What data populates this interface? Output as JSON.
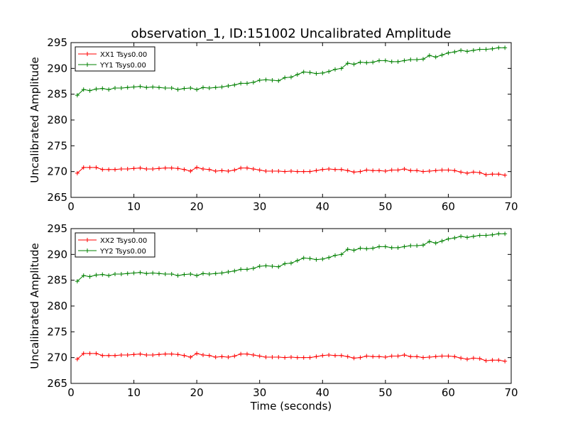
{
  "figure": {
    "title": "observation_1, ID:151002 Uncalibrated Amplitude",
    "xlabel": "Time (seconds)"
  },
  "chart_data": [
    {
      "type": "line",
      "title": "observation_1, ID:151002 Uncalibrated Amplitude",
      "xlabel": "",
      "ylabel": "Uncalibrated Amplitude",
      "xlim": [
        0,
        70
      ],
      "ylim": [
        265,
        295
      ],
      "xticks": [
        0,
        10,
        20,
        30,
        40,
        50,
        60,
        70
      ],
      "yticks": [
        265,
        270,
        275,
        280,
        285,
        290,
        295
      ],
      "grid": false,
      "legend_position": "top-left",
      "x": [
        1,
        2,
        3,
        4,
        5,
        6,
        7,
        8,
        9,
        10,
        11,
        12,
        13,
        14,
        15,
        16,
        17,
        18,
        19,
        20,
        21,
        22,
        23,
        24,
        25,
        26,
        27,
        28,
        29,
        30,
        31,
        32,
        33,
        34,
        35,
        36,
        37,
        38,
        39,
        40,
        41,
        42,
        43,
        44,
        45,
        46,
        47,
        48,
        49,
        50,
        51,
        52,
        53,
        54,
        55,
        56,
        57,
        58,
        59,
        60,
        61,
        62,
        63,
        64,
        65,
        66,
        67,
        68,
        69
      ],
      "series": [
        {
          "name": "XX1 Tsys0.00",
          "color": "#ff0000",
          "values": [
            269.7,
            270.8,
            270.8,
            270.8,
            270.4,
            270.4,
            270.4,
            270.5,
            270.5,
            270.6,
            270.7,
            270.5,
            270.5,
            270.6,
            270.7,
            270.7,
            270.6,
            270.4,
            270.1,
            270.8,
            270.5,
            270.4,
            270.1,
            270.2,
            270.1,
            270.3,
            270.7,
            270.7,
            270.5,
            270.3,
            270.1,
            270.1,
            270.1,
            270.0,
            270.1,
            270.0,
            270.0,
            270.0,
            270.2,
            270.4,
            270.5,
            270.4,
            270.4,
            270.2,
            269.9,
            270.0,
            270.3,
            270.2,
            270.2,
            270.1,
            270.3,
            270.3,
            270.5,
            270.2,
            270.2,
            270.0,
            270.1,
            270.2,
            270.3,
            270.3,
            270.2,
            269.9,
            269.7,
            269.9,
            269.8,
            269.4,
            269.5,
            269.5,
            269.3
          ]
        },
        {
          "name": "YY1 Tsys0.00",
          "color": "#008000",
          "values": [
            284.8,
            285.9,
            285.7,
            286.0,
            286.1,
            285.9,
            286.2,
            286.2,
            286.3,
            286.4,
            286.5,
            286.3,
            286.4,
            286.3,
            286.2,
            286.2,
            285.9,
            286.1,
            286.2,
            285.9,
            286.3,
            286.2,
            286.3,
            286.4,
            286.6,
            286.8,
            287.1,
            287.1,
            287.3,
            287.7,
            287.8,
            287.7,
            287.6,
            288.2,
            288.3,
            288.8,
            289.3,
            289.2,
            289.0,
            289.1,
            289.4,
            289.8,
            290.0,
            291.0,
            290.8,
            291.2,
            291.1,
            291.2,
            291.5,
            291.5,
            291.3,
            291.3,
            291.5,
            291.7,
            291.7,
            291.8,
            292.5,
            292.2,
            292.6,
            293.0,
            293.2,
            293.5,
            293.3,
            293.5,
            293.7,
            293.7,
            293.8,
            294.0,
            294.0
          ]
        }
      ]
    },
    {
      "type": "line",
      "title": "",
      "xlabel": "Time (seconds)",
      "ylabel": "Uncalibrated Amplitude",
      "xlim": [
        0,
        70
      ],
      "ylim": [
        265,
        295
      ],
      "xticks": [
        0,
        10,
        20,
        30,
        40,
        50,
        60,
        70
      ],
      "yticks": [
        265,
        270,
        275,
        280,
        285,
        290,
        295
      ],
      "grid": false,
      "legend_position": "top-left",
      "x": [
        1,
        2,
        3,
        4,
        5,
        6,
        7,
        8,
        9,
        10,
        11,
        12,
        13,
        14,
        15,
        16,
        17,
        18,
        19,
        20,
        21,
        22,
        23,
        24,
        25,
        26,
        27,
        28,
        29,
        30,
        31,
        32,
        33,
        34,
        35,
        36,
        37,
        38,
        39,
        40,
        41,
        42,
        43,
        44,
        45,
        46,
        47,
        48,
        49,
        50,
        51,
        52,
        53,
        54,
        55,
        56,
        57,
        58,
        59,
        60,
        61,
        62,
        63,
        64,
        65,
        66,
        67,
        68,
        69
      ],
      "series": [
        {
          "name": "XX2 Tsys0.00",
          "color": "#ff0000",
          "values": [
            269.7,
            270.8,
            270.8,
            270.8,
            270.4,
            270.4,
            270.4,
            270.5,
            270.5,
            270.6,
            270.7,
            270.5,
            270.5,
            270.6,
            270.7,
            270.7,
            270.6,
            270.4,
            270.1,
            270.8,
            270.5,
            270.4,
            270.1,
            270.2,
            270.1,
            270.3,
            270.7,
            270.7,
            270.5,
            270.3,
            270.1,
            270.1,
            270.1,
            270.0,
            270.1,
            270.0,
            270.0,
            270.0,
            270.2,
            270.4,
            270.5,
            270.4,
            270.4,
            270.2,
            269.9,
            270.0,
            270.3,
            270.2,
            270.2,
            270.1,
            270.3,
            270.3,
            270.5,
            270.2,
            270.2,
            270.0,
            270.1,
            270.2,
            270.3,
            270.3,
            270.2,
            269.9,
            269.7,
            269.9,
            269.8,
            269.4,
            269.5,
            269.5,
            269.3
          ]
        },
        {
          "name": "YY2 Tsys0.00",
          "color": "#008000",
          "values": [
            284.8,
            285.9,
            285.7,
            286.0,
            286.1,
            285.9,
            286.2,
            286.2,
            286.3,
            286.4,
            286.5,
            286.3,
            286.4,
            286.3,
            286.2,
            286.2,
            285.9,
            286.1,
            286.2,
            285.9,
            286.3,
            286.2,
            286.3,
            286.4,
            286.6,
            286.8,
            287.1,
            287.1,
            287.3,
            287.7,
            287.8,
            287.7,
            287.6,
            288.2,
            288.3,
            288.8,
            289.3,
            289.2,
            289.0,
            289.1,
            289.4,
            289.8,
            290.0,
            291.0,
            290.8,
            291.2,
            291.1,
            291.2,
            291.5,
            291.5,
            291.3,
            291.3,
            291.5,
            291.7,
            291.7,
            291.8,
            292.5,
            292.2,
            292.6,
            293.0,
            293.2,
            293.5,
            293.3,
            293.5,
            293.7,
            293.7,
            293.8,
            294.0,
            294.0
          ]
        }
      ]
    }
  ]
}
